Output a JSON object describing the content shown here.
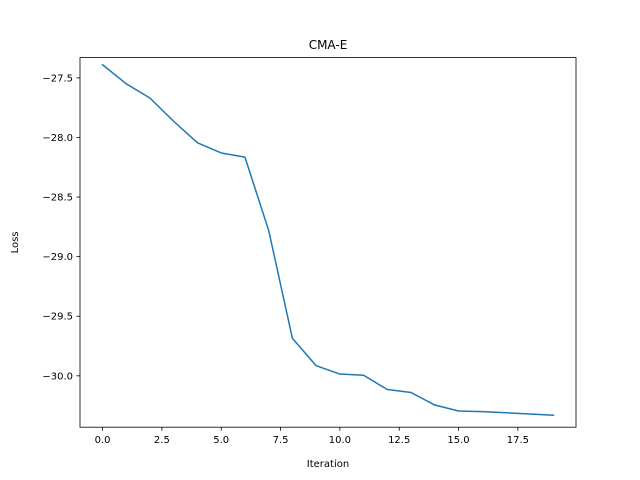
{
  "chart_data": {
    "type": "line",
    "title": "CMA-E",
    "xlabel": "Iteration",
    "ylabel": "Loss",
    "xlim": [
      -0.95,
      19.95
    ],
    "ylim": [
      -30.431,
      -27.33
    ],
    "xticks": [
      0.0,
      2.5,
      5.0,
      7.5,
      10.0,
      12.5,
      15.0,
      17.5
    ],
    "xtick_labels": [
      "0.0",
      "2.5",
      "5.0",
      "7.5",
      "10.0",
      "12.5",
      "15.0",
      "17.5"
    ],
    "yticks": [
      -27.5,
      -28.0,
      -28.5,
      -29.0,
      -29.5,
      -30.0
    ],
    "ytick_labels": [
      "−27.5",
      "−28.0",
      "−28.5",
      "−29.0",
      "−29.5",
      "−30.0"
    ],
    "grid": false,
    "series": [
      {
        "color": "#1f77b4",
        "x": [
          0,
          1,
          2,
          3,
          4,
          5,
          6,
          7,
          8,
          9,
          10,
          11,
          12,
          13,
          14,
          15,
          16,
          17,
          18,
          19
        ],
        "y": [
          -27.39,
          -27.55,
          -27.67,
          -27.865,
          -28.045,
          -28.13,
          -28.165,
          -28.78,
          -29.685,
          -29.915,
          -29.985,
          -29.995,
          -30.115,
          -30.14,
          -30.245,
          -30.295,
          -30.3,
          -30.31,
          -30.32,
          -30.33
        ]
      }
    ]
  }
}
